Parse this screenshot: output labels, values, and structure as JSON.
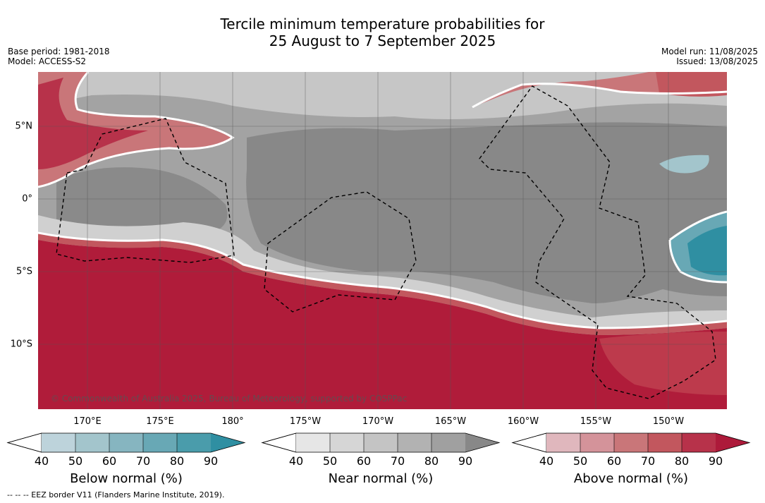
{
  "title_line1": "Tercile minimum temperature probabilities for",
  "title_line2": "25 August to 7 September 2025",
  "base_period": "Base period: 1981-2018",
  "model": "Model: ACCESS-S2",
  "model_run": "Model run: 11/08/2025",
  "issued": "Issued: 13/08/2025",
  "copyright": "© Commonwealth of Australia 2025, Bureau of Meteorology, supported by COSPPac",
  "footer": "--  --  -- EEZ border V11 (Flanders Marine Institute, 2019).",
  "lon_labels": [
    "170°E",
    "175°E",
    "180°",
    "175°W",
    "170°W",
    "165°W",
    "160°W",
    "155°W",
    "150°W"
  ],
  "lat_labels": [
    "5°N",
    "0°",
    "5°S",
    "10°S"
  ],
  "colorbars": [
    {
      "title": "Below normal (%)",
      "ticks": [
        "40",
        "50",
        "60",
        "70",
        "80",
        "90"
      ],
      "colors": [
        "#bdd3db",
        "#a3c5cc",
        "#86b5c0",
        "#68a8b5",
        "#4a9cab",
        "#2f8fa2"
      ]
    },
    {
      "title": "Near normal (%)",
      "ticks": [
        "40",
        "50",
        "60",
        "70",
        "80",
        "90"
      ],
      "colors": [
        "#e6e6e6",
        "#d6d6d6",
        "#c4c4c4",
        "#b2b2b2",
        "#a0a0a0",
        "#888888"
      ]
    },
    {
      "title": "Above normal (%)",
      "ticks": [
        "40",
        "50",
        "60",
        "70",
        "80",
        "90"
      ],
      "colors": [
        "#e0b7bd",
        "#d4939a",
        "#c97679",
        "#c2575e",
        "#b7324a",
        "#ad1a3a"
      ]
    }
  ]
}
